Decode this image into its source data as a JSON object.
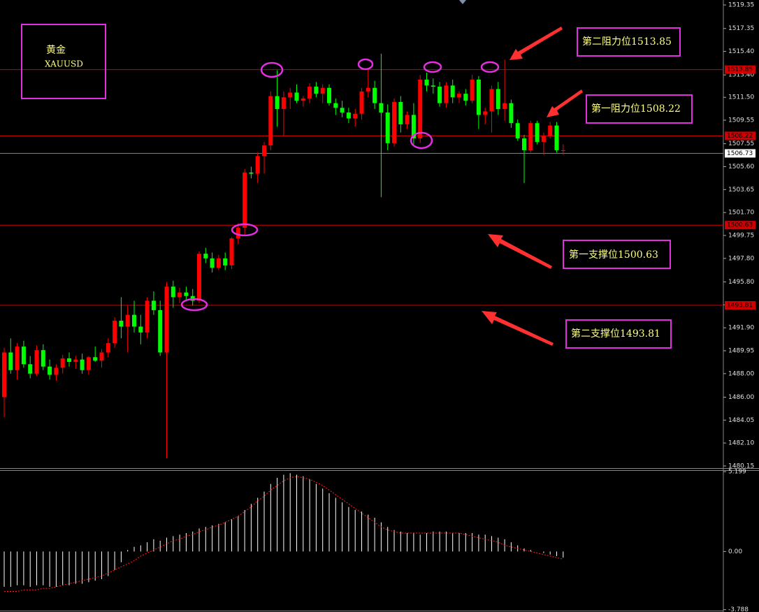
{
  "chart_data": [
    {
      "type": "candlestick",
      "up_color": "#ff0000",
      "down_color": "#00ff00",
      "ylim": [
        1479.97,
        1519.77
      ],
      "yticks": [
        1519.35,
        1517.35,
        {
          "value": 1515.4,
          "label": "1515.40"
        },
        {
          "value": 1513.4,
          "label": "1513.40"
        },
        {
          "value": 1511.5,
          "label": "1511.50"
        },
        1509.55,
        1507.55,
        {
          "value": 1505.6,
          "label": "1505.60"
        },
        1503.65,
        {
          "value": 1501.7,
          "label": "1501.70"
        },
        1499.75,
        {
          "value": 1497.8,
          "label": "1497.80"
        },
        {
          "value": 1495.8,
          "label": "1495.80"
        },
        1493.85,
        {
          "value": 1491.9,
          "label": "1491.90"
        },
        1489.95,
        {
          "value": 1488,
          "label": "1488.00"
        },
        {
          "value": 1486,
          "label": "1486.00"
        },
        1484.05,
        {
          "value": 1482.1,
          "label": "1482.10"
        },
        1480.15
      ],
      "levels": [
        {
          "value": 1513.85,
          "color": "#d00000",
          "label_bg": "#d00000",
          "label_color": "#000000"
        },
        {
          "value": 1508.22,
          "color": "#d00000",
          "label_bg": "#d00000",
          "label_color": "#000000"
        },
        {
          "value": 1506.73,
          "color": "#808080",
          "label_bg": "#ffffff",
          "label_color": "#000000"
        },
        {
          "value": 1500.63,
          "color": "#d00000",
          "label_bg": "#d00000",
          "label_color": "#000000"
        },
        {
          "value": 1493.81,
          "color": "#d00000",
          "label_bg": "#d00000",
          "label_color": "#000000"
        }
      ],
      "ohlc": [
        [
          1486.0,
          1490.2,
          1484.3,
          1489.8
        ],
        [
          1489.8,
          1491.0,
          1488.0,
          1488.3
        ],
        [
          1488.3,
          1490.6,
          1487.5,
          1490.3
        ],
        [
          1490.3,
          1490.8,
          1488.5,
          1488.8
        ],
        [
          1488.8,
          1489.5,
          1487.6,
          1488.0
        ],
        [
          1488.0,
          1490.4,
          1487.8,
          1490.0
        ],
        [
          1490.0,
          1490.5,
          1488.3,
          1488.6
        ],
        [
          1488.6,
          1489.2,
          1487.5,
          1487.9
        ],
        [
          1487.9,
          1488.8,
          1487.4,
          1488.5
        ],
        [
          1488.5,
          1489.6,
          1488.0,
          1489.3
        ],
        [
          1489.3,
          1489.8,
          1488.6,
          1489.0
        ],
        [
          1489.0,
          1489.5,
          1488.4,
          1489.2
        ],
        [
          1489.2,
          1489.7,
          1488.0,
          1488.3
        ],
        [
          1488.3,
          1489.5,
          1487.9,
          1489.4
        ],
        [
          1489.4,
          1490.3,
          1489.0,
          1489.1
        ],
        [
          1489.1,
          1490.1,
          1488.5,
          1489.8
        ],
        [
          1489.8,
          1491.0,
          1489.4,
          1490.6
        ],
        [
          1490.6,
          1492.8,
          1490.2,
          1492.5
        ],
        [
          1492.5,
          1494.5,
          1491.0,
          1492.0
        ],
        [
          1492.0,
          1493.8,
          1489.8,
          1493.0
        ],
        [
          1493.0,
          1494.2,
          1491.5,
          1492.0
        ],
        [
          1492.0,
          1493.0,
          1490.5,
          1491.5
        ],
        [
          1491.5,
          1494.5,
          1491.0,
          1494.2
        ],
        [
          1494.2,
          1495.0,
          1493.0,
          1493.4
        ],
        [
          1493.4,
          1494.2,
          1489.5,
          1489.8
        ],
        [
          1489.8,
          1495.8,
          1480.8,
          1495.4
        ],
        [
          1495.4,
          1495.9,
          1493.6,
          1494.5
        ],
        [
          1494.5,
          1495.3,
          1494.0,
          1494.9
        ],
        [
          1494.9,
          1495.4,
          1494.3,
          1494.6
        ],
        [
          1494.6,
          1495.2,
          1493.8,
          1494.2
        ],
        [
          1494.2,
          1498.4,
          1494.0,
          1498.2
        ],
        [
          1498.2,
          1498.7,
          1497.4,
          1497.8
        ],
        [
          1497.8,
          1498.3,
          1496.6,
          1497.0
        ],
        [
          1497.0,
          1498.1,
          1496.8,
          1497.8
        ],
        [
          1497.8,
          1498.3,
          1496.8,
          1497.2
        ],
        [
          1497.2,
          1499.6,
          1496.9,
          1499.5
        ],
        [
          1499.5,
          1500.8,
          1499.0,
          1500.4
        ],
        [
          1500.4,
          1505.4,
          1499.7,
          1505.1
        ],
        [
          1505.1,
          1505.6,
          1504.6,
          1505.0
        ],
        [
          1505.0,
          1506.8,
          1504.2,
          1506.5
        ],
        [
          1506.5,
          1507.7,
          1505.0,
          1507.4
        ],
        [
          1507.4,
          1512.0,
          1507.0,
          1511.6
        ],
        [
          1511.6,
          1513.8,
          1509.0,
          1510.5
        ],
        [
          1510.5,
          1512.0,
          1508.2,
          1511.5
        ],
        [
          1511.5,
          1512.3,
          1510.5,
          1511.9
        ],
        [
          1511.9,
          1512.6,
          1511.0,
          1511.2
        ],
        [
          1511.2,
          1511.6,
          1510.7,
          1511.4
        ],
        [
          1511.4,
          1512.7,
          1511.0,
          1512.4
        ],
        [
          1512.4,
          1512.8,
          1511.5,
          1511.8
        ],
        [
          1511.8,
          1512.6,
          1511.0,
          1512.3
        ],
        [
          1512.3,
          1512.6,
          1510.8,
          1511.0
        ],
        [
          1511.0,
          1511.4,
          1510.0,
          1510.6
        ],
        [
          1510.6,
          1511.2,
          1509.8,
          1510.2
        ],
        [
          1510.2,
          1510.6,
          1509.3,
          1509.7
        ],
        [
          1509.7,
          1510.5,
          1509.0,
          1510.1
        ],
        [
          1510.1,
          1512.3,
          1509.6,
          1512.0
        ],
        [
          1512.0,
          1514.0,
          1511.5,
          1512.3
        ],
        [
          1512.3,
          1512.9,
          1510.5,
          1511.0
        ],
        [
          1511.0,
          1515.2,
          1503.0,
          1510.2
        ],
        [
          1510.2,
          1510.9,
          1507.0,
          1507.6
        ],
        [
          1507.6,
          1511.4,
          1507.3,
          1511.1
        ],
        [
          1511.1,
          1511.6,
          1508.5,
          1509.2
        ],
        [
          1509.2,
          1510.3,
          1508.8,
          1510.0
        ],
        [
          1510.0,
          1511.0,
          1507.5,
          1508.0
        ],
        [
          1508.0,
          1513.4,
          1507.6,
          1513.0
        ],
        [
          1513.0,
          1513.6,
          1512.0,
          1512.5
        ],
        [
          1512.5,
          1513.1,
          1511.8,
          1512.4
        ],
        [
          1512.4,
          1512.8,
          1510.7,
          1511.0
        ],
        [
          1511.0,
          1512.8,
          1510.6,
          1512.5
        ],
        [
          1512.5,
          1513.0,
          1511.0,
          1511.5
        ],
        [
          1511.5,
          1512.0,
          1511.0,
          1511.8
        ],
        [
          1511.8,
          1512.2,
          1510.8,
          1511.2
        ],
        [
          1511.2,
          1513.4,
          1511.0,
          1513.0
        ],
        [
          1513.0,
          1513.3,
          1508.8,
          1510.0
        ],
        [
          1510.0,
          1510.6,
          1509.2,
          1510.3
        ],
        [
          1510.3,
          1512.5,
          1508.5,
          1512.2
        ],
        [
          1512.2,
          1512.8,
          1510.0,
          1510.5
        ],
        [
          1510.5,
          1514.7,
          1509.5,
          1511.0
        ],
        [
          1511.0,
          1511.3,
          1508.9,
          1509.3
        ],
        [
          1509.3,
          1509.6,
          1507.8,
          1508.0
        ],
        [
          1508.0,
          1508.3,
          1504.2,
          1507.0
        ],
        [
          1507.0,
          1509.5,
          1506.8,
          1509.3
        ],
        [
          1509.3,
          1509.5,
          1507.5,
          1507.7
        ],
        [
          1507.7,
          1508.5,
          1506.6,
          1508.2
        ],
        [
          1508.2,
          1509.4,
          1508.0,
          1509.1
        ],
        [
          1509.1,
          1509.4,
          1506.8,
          1507.0
        ],
        [
          1507.0,
          1507.5,
          1506.6,
          1507.0
        ]
      ]
    },
    {
      "type": "macd",
      "histogram_color": "#ffffff",
      "signal_color": "#ff2020",
      "ylim": [
        -3.85,
        5.25
      ],
      "yticks": [
        5.199,
        {
          "value": 0,
          "label": "0.00"
        },
        -3.788
      ],
      "histogram": [
        -2.3,
        -2.3,
        -2.2,
        -2.2,
        -2.3,
        -2.2,
        -2.2,
        -2.3,
        -2.3,
        -2.2,
        -2.2,
        -2.1,
        -2.1,
        -2.0,
        -1.9,
        -1.8,
        -1.6,
        -1.2,
        -0.7,
        0.1,
        0.3,
        0.4,
        0.6,
        0.8,
        0.7,
        0.9,
        1.0,
        1.1,
        1.2,
        1.3,
        1.5,
        1.6,
        1.7,
        1.8,
        1.9,
        2.1,
        2.3,
        2.7,
        3.1,
        3.5,
        3.9,
        4.4,
        4.8,
        5.0,
        5.1,
        5.0,
        4.9,
        4.7,
        4.4,
        4.1,
        3.8,
        3.5,
        3.2,
        2.9,
        2.7,
        2.6,
        2.4,
        2.2,
        1.9,
        1.6,
        1.4,
        1.3,
        1.2,
        1.2,
        1.1,
        1.2,
        1.3,
        1.3,
        1.3,
        1.2,
        1.2,
        1.2,
        1.2,
        1.1,
        1.1,
        1.0,
        0.9,
        0.8,
        0.6,
        0.4,
        0.2,
        0.1,
        0.0,
        -0.1,
        -0.2,
        -0.3,
        -0.4
      ],
      "signal": [
        -2.6,
        -2.6,
        -2.6,
        -2.5,
        -2.5,
        -2.5,
        -2.4,
        -2.4,
        -2.3,
        -2.2,
        -2.1,
        -2.0,
        -1.9,
        -1.8,
        -1.7,
        -1.6,
        -1.4,
        -1.2,
        -1.0,
        -0.8,
        -0.6,
        -0.3,
        -0.1,
        0.1,
        0.3,
        0.5,
        0.7,
        0.8,
        1.0,
        1.1,
        1.3,
        1.4,
        1.6,
        1.7,
        1.9,
        2.1,
        2.3,
        2.6,
        2.9,
        3.3,
        3.6,
        4.0,
        4.3,
        4.6,
        4.8,
        4.9,
        4.8,
        4.7,
        4.5,
        4.3,
        4.0,
        3.7,
        3.4,
        3.1,
        2.8,
        2.5,
        2.2,
        1.9,
        1.6,
        1.4,
        1.3,
        1.2,
        1.2,
        1.2,
        1.2,
        1.2,
        1.2,
        1.2,
        1.2,
        1.2,
        1.2,
        1.1,
        1.0,
        0.9,
        0.8,
        0.7,
        0.6,
        0.4,
        0.3,
        0.2,
        0.1,
        0.0,
        -0.1,
        -0.2,
        -0.3,
        -0.4,
        -0.5
      ]
    }
  ],
  "annotations": {
    "symbol_cn": "黄金",
    "symbol": "XAUUSD",
    "resistance_2": "第二阻力位1513.85",
    "resistance_1": "第一阻力位1508.22",
    "support_1": "第一支撑位1500.63",
    "support_2": "第二支撑位1493.81"
  }
}
